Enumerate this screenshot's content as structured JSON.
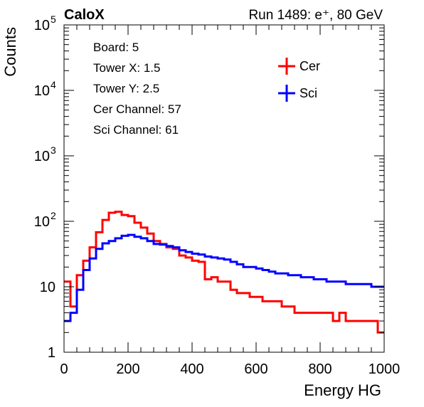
{
  "header": {
    "brand": "CaloX",
    "run_info": "Run 1489: e⁺, 80 GeV"
  },
  "info_box": [
    "Board: 5",
    "Tower X: 1.5",
    "Tower Y: 2.5",
    "Cer Channel: 57",
    "Sci Channel: 61"
  ],
  "chart_data": {
    "type": "line",
    "xlabel": "Energy HG",
    "ylabel": "Counts",
    "xlim": [
      0,
      1000
    ],
    "ylim": [
      1,
      100000
    ],
    "y_scale": "log",
    "grid": false,
    "legend_position": "top-right",
    "x_ticks": [
      "0",
      "200",
      "400",
      "600",
      "800",
      "1000"
    ],
    "y_ticks": [
      {
        "value": 1,
        "label": "1"
      },
      {
        "value": 10,
        "label": "10"
      },
      {
        "value": 100,
        "label": "10",
        "exp": "2"
      },
      {
        "value": 1000,
        "label": "10",
        "exp": "3"
      },
      {
        "value": 10000,
        "label": "10",
        "exp": "4"
      },
      {
        "value": 100000,
        "label": "10",
        "exp": "5"
      }
    ],
    "series": [
      {
        "name": "Cer",
        "color": "#ff0000",
        "x": [
          0,
          20,
          40,
          60,
          80,
          100,
          120,
          140,
          160,
          180,
          200,
          220,
          240,
          260,
          280,
          300,
          320,
          340,
          360,
          380,
          400,
          420,
          440,
          460,
          480,
          500,
          520,
          540,
          560,
          580,
          600,
          620,
          640,
          660,
          680,
          700,
          720,
          740,
          760,
          780,
          800,
          820,
          840,
          860,
          880,
          900,
          920,
          940,
          960,
          980,
          1000
        ],
        "y": [
          12,
          5,
          15,
          25,
          40,
          68,
          105,
          135,
          140,
          125,
          120,
          95,
          80,
          65,
          50,
          45,
          40,
          38,
          30,
          28,
          25,
          24,
          13,
          14,
          12,
          12,
          9,
          8,
          8,
          7,
          7,
          6,
          6,
          6,
          5,
          5,
          4,
          4,
          4,
          4,
          4,
          4,
          3,
          4,
          3,
          3,
          3,
          3,
          3,
          2,
          2
        ]
      },
      {
        "name": "Sci",
        "color": "#0000ff",
        "x": [
          0,
          20,
          40,
          60,
          80,
          100,
          120,
          140,
          160,
          180,
          200,
          220,
          240,
          260,
          280,
          300,
          320,
          340,
          360,
          380,
          400,
          420,
          440,
          460,
          480,
          500,
          520,
          540,
          560,
          580,
          600,
          620,
          640,
          660,
          680,
          700,
          720,
          740,
          760,
          780,
          800,
          820,
          840,
          860,
          880,
          900,
          920,
          940,
          960,
          980,
          1000
        ],
        "y": [
          3,
          4,
          9,
          18,
          27,
          38,
          46,
          50,
          55,
          60,
          62,
          58,
          55,
          50,
          45,
          44,
          42,
          40,
          36,
          34,
          32,
          31,
          29,
          28,
          27,
          26,
          24,
          22,
          20,
          20,
          19,
          18,
          17,
          16,
          16,
          15,
          15,
          14,
          14,
          13,
          13,
          12,
          12,
          12,
          11,
          11,
          11,
          11,
          10,
          10,
          10
        ]
      }
    ]
  }
}
